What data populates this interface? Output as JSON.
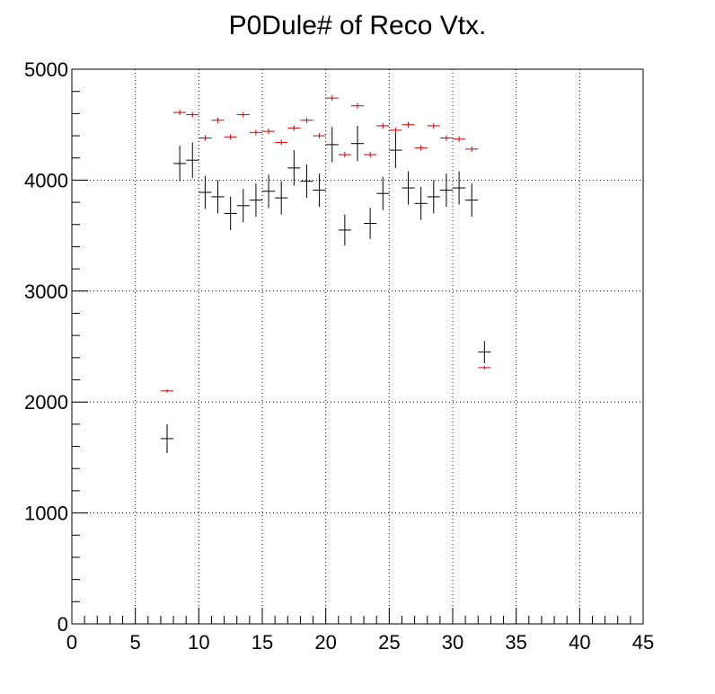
{
  "chart_data": {
    "type": "scatter",
    "title": "P0Dule# of Reco Vtx.",
    "xlabel": "",
    "ylabel": "",
    "xlim": [
      0,
      45
    ],
    "ylim": [
      0,
      5000
    ],
    "x_ticks": [
      "0",
      "5",
      "10",
      "15",
      "20",
      "25",
      "30",
      "35",
      "40",
      "45"
    ],
    "y_ticks": [
      "0",
      "1000",
      "2000",
      "3000",
      "4000",
      "5000"
    ],
    "grid": true,
    "colors": {
      "series_1": "#000000",
      "series_2": "#cc0000"
    },
    "series": [
      {
        "color_key": "series_1",
        "x": [
          7.5,
          8.5,
          9.5,
          10.5,
          11.5,
          12.5,
          13.5,
          14.5,
          15.5,
          16.5,
          17.5,
          18.5,
          19.5,
          20.5,
          21.5,
          22.5,
          23.5,
          24.5,
          25.5,
          26.5,
          27.5,
          28.5,
          29.5,
          30.5,
          31.5,
          32.5
        ],
        "y": [
          1670,
          4150,
          4180,
          3890,
          3850,
          3700,
          3770,
          3820,
          3900,
          3840,
          4110,
          3990,
          3910,
          4320,
          3550,
          4330,
          3610,
          3880,
          4270,
          3930,
          3790,
          3850,
          3910,
          3930,
          3820,
          2450
        ],
        "yerr": [
          130,
          160,
          160,
          150,
          150,
          150,
          150,
          150,
          150,
          150,
          160,
          150,
          150,
          160,
          140,
          160,
          140,
          150,
          160,
          150,
          150,
          150,
          150,
          150,
          150,
          100
        ]
      },
      {
        "color_key": "series_2",
        "x": [
          7.5,
          8.5,
          9.5,
          10.5,
          11.5,
          12.5,
          13.5,
          14.5,
          15.5,
          16.5,
          17.5,
          18.5,
          19.5,
          20.5,
          21.5,
          22.5,
          23.5,
          24.5,
          25.5,
          26.5,
          27.5,
          28.5,
          29.5,
          30.5,
          31.5,
          32.5
        ],
        "y": [
          2100,
          4610,
          4590,
          4380,
          4540,
          4390,
          4590,
          4430,
          4440,
          4340,
          4470,
          4540,
          4400,
          4740,
          4230,
          4670,
          4230,
          4490,
          4450,
          4500,
          4290,
          4490,
          4380,
          4370,
          4280,
          2310
        ],
        "yerr": [
          15,
          25,
          25,
          25,
          25,
          25,
          25,
          25,
          25,
          25,
          25,
          25,
          25,
          25,
          25,
          25,
          25,
          25,
          25,
          25,
          25,
          25,
          25,
          25,
          25,
          15
        ]
      }
    ]
  }
}
